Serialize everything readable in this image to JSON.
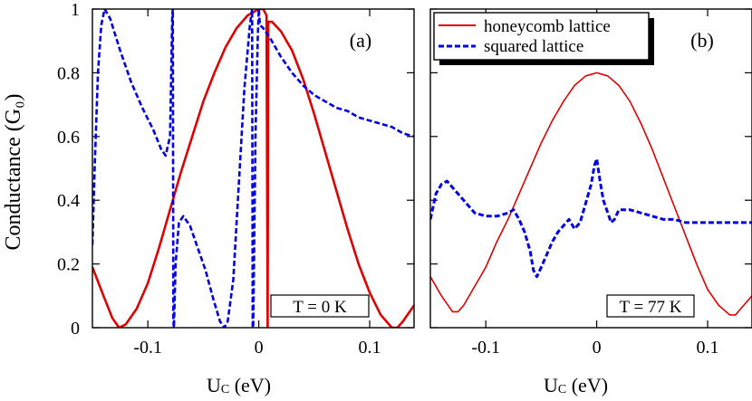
{
  "ylabel": "Conductance (G₀)",
  "colors": {
    "honeycomb": "#e00000",
    "squared": "#0000e0"
  },
  "chart_data": [
    {
      "type": "line",
      "panel_label": "(a)",
      "temperature_label": "T = 0 K",
      "xlabel": "U_C (eV)",
      "xlabel_main": "U",
      "xlabel_sub": "C",
      "xlabel_unit": " (eV)",
      "ylabel": "Conductance (G₀)",
      "xlim": [
        -0.15,
        0.14
      ],
      "ylim": [
        0,
        1
      ],
      "x_ticks": [
        -0.1,
        0,
        0.1
      ],
      "x_tick_labels": [
        "-0.1",
        "0",
        "0.1"
      ],
      "y_ticks": [
        0,
        0.2,
        0.4,
        0.6,
        0.8,
        1
      ],
      "y_tick_labels": [
        "0",
        "0.2",
        "0.4",
        "0.6",
        "0.8",
        "1"
      ],
      "series": [
        {
          "name": "honeycomb lattice",
          "style": "solid",
          "color": "#e00000",
          "points": [
            [
              -0.15,
              0.19
            ],
            [
              -0.14,
              0.1
            ],
            [
              -0.132,
              0.03
            ],
            [
              -0.126,
              0.0
            ],
            [
              -0.12,
              0.01
            ],
            [
              -0.11,
              0.06
            ],
            [
              -0.1,
              0.14
            ],
            [
              -0.09,
              0.25
            ],
            [
              -0.08,
              0.37
            ],
            [
              -0.07,
              0.49
            ],
            [
              -0.06,
              0.6
            ],
            [
              -0.05,
              0.71
            ],
            [
              -0.04,
              0.8
            ],
            [
              -0.03,
              0.88
            ],
            [
              -0.02,
              0.94
            ],
            [
              -0.01,
              0.98
            ],
            [
              0.0,
              1.0
            ],
            [
              0.004,
              1.0
            ],
            [
              0.007,
              0.98
            ],
            [
              0.008,
              0.0
            ],
            [
              0.0085,
              0.96
            ],
            [
              0.012,
              0.96
            ],
            [
              0.02,
              0.93
            ],
            [
              0.03,
              0.87
            ],
            [
              0.04,
              0.78
            ],
            [
              0.05,
              0.67
            ],
            [
              0.06,
              0.55
            ],
            [
              0.07,
              0.43
            ],
            [
              0.08,
              0.31
            ],
            [
              0.09,
              0.2
            ],
            [
              0.1,
              0.11
            ],
            [
              0.11,
              0.04
            ],
            [
              0.12,
              0.0
            ],
            [
              0.125,
              0.0
            ],
            [
              0.13,
              0.02
            ],
            [
              0.14,
              0.07
            ]
          ]
        },
        {
          "name": "squared lattice",
          "style": "dashed",
          "color": "#0000e0",
          "points": [
            [
              -0.15,
              0.26
            ],
            [
              -0.148,
              0.5
            ],
            [
              -0.145,
              0.8
            ],
            [
              -0.142,
              0.95
            ],
            [
              -0.139,
              1.0
            ],
            [
              -0.134,
              0.97
            ],
            [
              -0.125,
              0.87
            ],
            [
              -0.115,
              0.77
            ],
            [
              -0.105,
              0.69
            ],
            [
              -0.095,
              0.62
            ],
            [
              -0.088,
              0.56
            ],
            [
              -0.084,
              0.54
            ],
            [
              -0.08,
              0.6
            ],
            [
              -0.078,
              0.98
            ],
            [
              -0.0775,
              1.0
            ],
            [
              -0.077,
              0.02
            ],
            [
              -0.0765,
              0.0
            ],
            [
              -0.075,
              0.2
            ],
            [
              -0.072,
              0.33
            ],
            [
              -0.068,
              0.35
            ],
            [
              -0.062,
              0.32
            ],
            [
              -0.055,
              0.25
            ],
            [
              -0.048,
              0.18
            ],
            [
              -0.041,
              0.09
            ],
            [
              -0.035,
              0.02
            ],
            [
              -0.031,
              0.0
            ],
            [
              -0.028,
              0.02
            ],
            [
              -0.023,
              0.15
            ],
            [
              -0.018,
              0.45
            ],
            [
              -0.013,
              0.75
            ],
            [
              -0.008,
              0.95
            ],
            [
              -0.006,
              1.0
            ],
            [
              -0.0055,
              0.0
            ],
            [
              -0.005,
              0.0
            ],
            [
              -0.003,
              0.6
            ],
            [
              -0.001,
              0.9
            ],
            [
              0.0,
              1.0
            ],
            [
              0.001,
              0.95
            ],
            [
              0.004,
              0.94
            ],
            [
              0.01,
              0.91
            ],
            [
              0.02,
              0.85
            ],
            [
              0.03,
              0.8
            ],
            [
              0.04,
              0.76
            ],
            [
              0.05,
              0.73
            ],
            [
              0.06,
              0.71
            ],
            [
              0.07,
              0.69
            ],
            [
              0.08,
              0.68
            ],
            [
              0.09,
              0.66
            ],
            [
              0.1,
              0.65
            ],
            [
              0.11,
              0.64
            ],
            [
              0.12,
              0.63
            ],
            [
              0.13,
              0.61
            ],
            [
              0.14,
              0.6
            ]
          ]
        }
      ]
    },
    {
      "type": "line",
      "panel_label": "(b)",
      "temperature_label": "T = 77 K",
      "xlabel": "U_C (eV)",
      "xlabel_main": "U",
      "xlabel_sub": "C",
      "xlabel_unit": " (eV)",
      "xlim": [
        -0.15,
        0.14
      ],
      "ylim": [
        0,
        1
      ],
      "x_ticks": [
        -0.1,
        0,
        0.1
      ],
      "x_tick_labels": [
        "-0.1",
        "0",
        "0.1"
      ],
      "y_ticks": [
        0,
        0.2,
        0.4,
        0.6,
        0.8,
        1
      ],
      "legend": {
        "placement": "top-left"
      },
      "series": [
        {
          "name": "honeycomb lattice",
          "style": "solid",
          "color": "#e00000",
          "points": [
            [
              -0.15,
              0.16
            ],
            [
              -0.14,
              0.1
            ],
            [
              -0.13,
              0.05
            ],
            [
              -0.125,
              0.05
            ],
            [
              -0.12,
              0.07
            ],
            [
              -0.11,
              0.13
            ],
            [
              -0.1,
              0.19
            ],
            [
              -0.09,
              0.27
            ],
            [
              -0.08,
              0.34
            ],
            [
              -0.07,
              0.42
            ],
            [
              -0.06,
              0.5
            ],
            [
              -0.05,
              0.58
            ],
            [
              -0.04,
              0.65
            ],
            [
              -0.03,
              0.71
            ],
            [
              -0.02,
              0.76
            ],
            [
              -0.01,
              0.79
            ],
            [
              0.0,
              0.8
            ],
            [
              0.01,
              0.79
            ],
            [
              0.02,
              0.76
            ],
            [
              0.03,
              0.71
            ],
            [
              0.04,
              0.64
            ],
            [
              0.05,
              0.56
            ],
            [
              0.06,
              0.47
            ],
            [
              0.07,
              0.38
            ],
            [
              0.08,
              0.29
            ],
            [
              0.09,
              0.2
            ],
            [
              0.1,
              0.12
            ],
            [
              0.11,
              0.07
            ],
            [
              0.12,
              0.04
            ],
            [
              0.125,
              0.04
            ],
            [
              0.13,
              0.06
            ],
            [
              0.14,
              0.1
            ]
          ]
        },
        {
          "name": "squared lattice",
          "style": "dashed",
          "color": "#0000e0",
          "points": [
            [
              -0.15,
              0.34
            ],
            [
              -0.145,
              0.42
            ],
            [
              -0.14,
              0.45
            ],
            [
              -0.135,
              0.46
            ],
            [
              -0.13,
              0.44
            ],
            [
              -0.12,
              0.4
            ],
            [
              -0.11,
              0.36
            ],
            [
              -0.1,
              0.35
            ],
            [
              -0.09,
              0.35
            ],
            [
              -0.08,
              0.36
            ],
            [
              -0.075,
              0.37
            ],
            [
              -0.07,
              0.34
            ],
            [
              -0.065,
              0.3
            ],
            [
              -0.06,
              0.24
            ],
            [
              -0.057,
              0.18
            ],
            [
              -0.054,
              0.16
            ],
            [
              -0.05,
              0.19
            ],
            [
              -0.045,
              0.23
            ],
            [
              -0.04,
              0.27
            ],
            [
              -0.035,
              0.3
            ],
            [
              -0.03,
              0.32
            ],
            [
              -0.025,
              0.34
            ],
            [
              -0.02,
              0.31
            ],
            [
              -0.015,
              0.33
            ],
            [
              -0.01,
              0.39
            ],
            [
              -0.005,
              0.45
            ],
            [
              -0.002,
              0.51
            ],
            [
              0.0,
              0.53
            ],
            [
              0.003,
              0.46
            ],
            [
              0.006,
              0.4
            ],
            [
              0.01,
              0.36
            ],
            [
              0.013,
              0.33
            ],
            [
              0.016,
              0.34
            ],
            [
              0.02,
              0.37
            ],
            [
              0.03,
              0.37
            ],
            [
              0.04,
              0.36
            ],
            [
              0.05,
              0.35
            ],
            [
              0.06,
              0.34
            ],
            [
              0.07,
              0.34
            ],
            [
              0.08,
              0.33
            ],
            [
              0.1,
              0.33
            ],
            [
              0.12,
              0.33
            ],
            [
              0.14,
              0.33
            ]
          ]
        }
      ]
    }
  ]
}
